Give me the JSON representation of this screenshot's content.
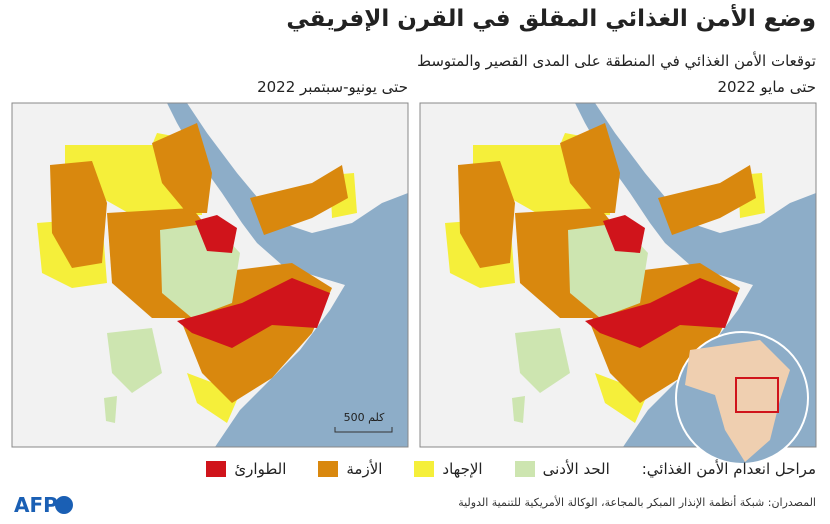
{
  "header": {
    "title": "وضع الأمن الغذائي المقلق في القرن الإفريقي",
    "subtitle": "توقعات الأمن الغذائي في المنطقة على المدى القصير والمتوسط"
  },
  "maps": [
    {
      "label": "حتى يونيو-سبتمبر 2022"
    },
    {
      "label": "حتى مايو 2022"
    }
  ],
  "scale_label": "500 كلم",
  "legend": {
    "title": "مراحل انعدام الأمن الغذائي:",
    "items": [
      {
        "label": "الحد الأدنى",
        "color": "#cde5b0"
      },
      {
        "label": "الإجهاد",
        "color": "#f5ef3a"
      },
      {
        "label": "الأزمة",
        "color": "#d9880e"
      },
      {
        "label": "الطوارئ",
        "color": "#d0141b"
      }
    ]
  },
  "source": "المصدران: شبكة أنظمة الإنذار المبكر بالمجاعة، الوكالة الأمريكية للتنمية الدولية",
  "logo": "AFP"
}
